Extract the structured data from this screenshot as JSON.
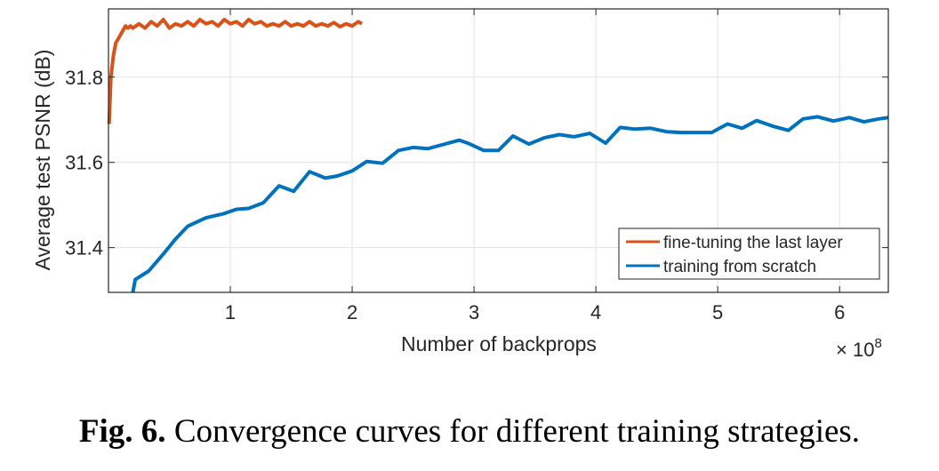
{
  "caption": {
    "label": "Fig. 6.",
    "text": "Convergence curves for different training strategies."
  },
  "chart_data": {
    "type": "line",
    "xlabel": "Number of backprops",
    "ylabel": "Average test PSNR (dB)",
    "x_multiplier_label": "× 10",
    "x_multiplier_exponent": "8",
    "xlim": [
      0,
      6.4
    ],
    "ylim": [
      31.295,
      31.96
    ],
    "xticks": [
      1,
      2,
      3,
      4,
      5,
      6
    ],
    "yticks": [
      31.4,
      31.6,
      31.8
    ],
    "xtick_labels": [
      "1",
      "2",
      "3",
      "4",
      "5",
      "6"
    ],
    "ytick_labels": [
      "31.4",
      "31.6",
      "31.8"
    ],
    "grid": true,
    "legend_position": "bottom-right",
    "colors": {
      "fine_tuning": "#D95319",
      "scratch": "#0072BD"
    },
    "series": [
      {
        "name": "fine-tuning the last layer",
        "x": [
          0.005,
          0.02,
          0.04,
          0.06,
          0.08,
          0.1,
          0.12,
          0.14,
          0.16,
          0.18,
          0.2,
          0.25,
          0.3,
          0.35,
          0.4,
          0.45,
          0.5,
          0.55,
          0.6,
          0.65,
          0.7,
          0.75,
          0.8,
          0.85,
          0.9,
          0.95,
          1.0,
          1.05,
          1.1,
          1.15,
          1.2,
          1.25,
          1.3,
          1.35,
          1.4,
          1.45,
          1.5,
          1.55,
          1.6,
          1.65,
          1.7,
          1.75,
          1.8,
          1.85,
          1.9,
          1.95,
          2.0,
          2.05,
          2.08
        ],
        "y": [
          31.69,
          31.8,
          31.85,
          31.88,
          31.89,
          31.9,
          31.91,
          31.92,
          31.915,
          31.92,
          31.915,
          31.925,
          31.915,
          31.93,
          31.92,
          31.935,
          31.915,
          31.925,
          31.92,
          31.93,
          31.92,
          31.935,
          31.925,
          31.93,
          31.92,
          31.935,
          31.925,
          31.93,
          31.92,
          31.935,
          31.925,
          31.93,
          31.92,
          31.925,
          31.92,
          31.93,
          31.92,
          31.925,
          31.92,
          31.93,
          31.92,
          31.925,
          31.92,
          31.928,
          31.918,
          31.925,
          31.92,
          31.93,
          31.925
        ]
      },
      {
        "name": "training from scratch",
        "x": [
          0.2,
          0.22,
          0.33,
          0.45,
          0.55,
          0.65,
          0.8,
          0.95,
          1.05,
          1.15,
          1.27,
          1.4,
          1.52,
          1.65,
          1.78,
          1.88,
          2.0,
          2.12,
          2.25,
          2.38,
          2.5,
          2.62,
          2.75,
          2.88,
          2.95,
          3.08,
          3.2,
          3.32,
          3.45,
          3.58,
          3.7,
          3.82,
          3.95,
          4.08,
          4.2,
          4.32,
          4.45,
          4.58,
          4.7,
          4.82,
          4.95,
          5.08,
          5.2,
          5.32,
          5.45,
          5.58,
          5.7,
          5.82,
          5.95,
          6.08,
          6.2,
          6.32,
          6.4
        ],
        "y": [
          31.295,
          31.325,
          31.345,
          31.385,
          31.42,
          31.45,
          31.47,
          31.48,
          31.49,
          31.492,
          31.505,
          31.545,
          31.532,
          31.578,
          31.563,
          31.568,
          31.58,
          31.602,
          31.598,
          31.628,
          31.635,
          31.632,
          31.642,
          31.652,
          31.645,
          31.628,
          31.628,
          31.662,
          31.643,
          31.658,
          31.665,
          31.66,
          31.668,
          31.645,
          31.682,
          31.678,
          31.68,
          31.672,
          31.67,
          31.67,
          31.67,
          31.69,
          31.68,
          31.698,
          31.685,
          31.675,
          31.702,
          31.707,
          31.697,
          31.705,
          31.695,
          31.702,
          31.705
        ]
      }
    ]
  }
}
